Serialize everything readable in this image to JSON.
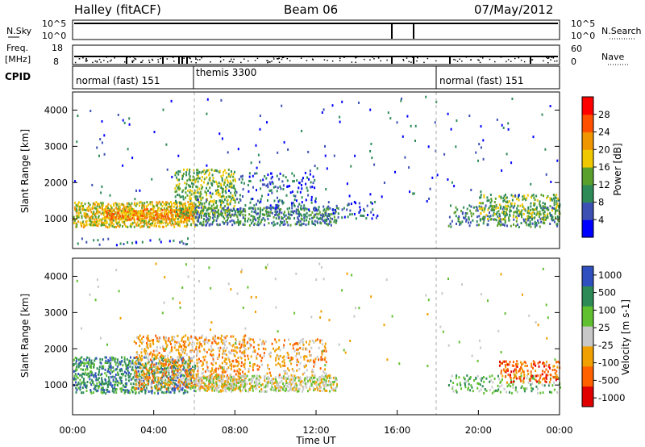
{
  "header": {
    "station": "Halley (fitACF)",
    "beam": "Beam 06",
    "date": "07/May/2012"
  },
  "strips": {
    "sky": {
      "left_label": "N.Sky",
      "right_label": "N.Search",
      "left_ticks": [
        "10^5",
        "10^0"
      ],
      "right_ticks": [
        "10^5",
        "10^0"
      ]
    },
    "freq": {
      "left_label_1": "Freq.",
      "left_label_2": "[MHz]",
      "right_label": "Nave",
      "left_ticks": [
        "18",
        "8"
      ],
      "right_ticks": [
        "60",
        "0"
      ]
    },
    "cpid": {
      "label": "CPID",
      "segments": [
        {
          "text": "normal (fast) 151",
          "start_h": 0,
          "end_h": 6
        },
        {
          "text": "themis 3300",
          "start_h": 6,
          "end_h": 18
        },
        {
          "text": "normal (fast) 151",
          "start_h": 18,
          "end_h": 24
        }
      ]
    }
  },
  "colors": {
    "power": [
      "#0000ff",
      "#3c50b4",
      "#2e8b57",
      "#5aa02c",
      "#f0c800",
      "#f09600",
      "#ff5000",
      "#ff0000"
    ],
    "velocity": [
      "#3050c0",
      "#2e8b57",
      "#60c030",
      "#c8c8c8",
      "#f0a000",
      "#ff6000",
      "#e00000"
    ]
  },
  "chart_data": [
    {
      "type": "heatmap",
      "name": "power",
      "x": {
        "label": "Time UT",
        "range_h": [
          0,
          24
        ],
        "ticks": [
          "00:00",
          "04:00",
          "08:00",
          "12:00",
          "16:00",
          "20:00",
          "00:00"
        ],
        "tick_hours": [
          0,
          4,
          8,
          12,
          16,
          20,
          24
        ]
      },
      "y": {
        "label": "Slant Range [km]",
        "range": [
          180,
          4500
        ],
        "ticks": [
          1000,
          2000,
          3000,
          4000
        ]
      },
      "colorbar": {
        "label": "Power [dB]",
        "range": [
          0,
          32
        ],
        "ticks": [
          4,
          8,
          12,
          16,
          20,
          24,
          28
        ]
      },
      "scatter_regions": [
        {
          "t0": 0.0,
          "t1": 5.8,
          "r0": 300,
          "r1": 500,
          "density": 0.18,
          "value": 8
        },
        {
          "t0": 0.0,
          "t1": 6.0,
          "r0": 800,
          "r1": 1500,
          "density": 0.8,
          "value": 18
        },
        {
          "t0": 1.5,
          "t1": 6.0,
          "r0": 1000,
          "r1": 1300,
          "density": 0.9,
          "value": 24
        },
        {
          "t0": 5.0,
          "t1": 8.0,
          "r0": 1100,
          "r1": 2400,
          "density": 0.5,
          "value": 14
        },
        {
          "t0": 6.0,
          "t1": 13.0,
          "r0": 850,
          "r1": 1350,
          "density": 0.6,
          "value": 12
        },
        {
          "t0": 8.0,
          "t1": 12.0,
          "r0": 1200,
          "r1": 2300,
          "density": 0.22,
          "value": 6
        },
        {
          "t0": 12.0,
          "t1": 15.0,
          "r0": 1000,
          "r1": 1500,
          "density": 0.2,
          "value": 6
        },
        {
          "t0": 18.5,
          "t1": 24.0,
          "r0": 800,
          "r1": 1400,
          "density": 0.35,
          "value": 10
        },
        {
          "t0": 20.0,
          "t1": 24.0,
          "r0": 1000,
          "r1": 1700,
          "density": 0.4,
          "value": 16
        },
        {
          "t0": 0.0,
          "t1": 24.0,
          "r0": 1500,
          "r1": 4400,
          "density": 0.012,
          "value": 6
        }
      ]
    },
    {
      "type": "heatmap",
      "name": "velocity",
      "x": {
        "label": "Time UT",
        "range_h": [
          0,
          24
        ],
        "ticks": [
          "00:00",
          "04:00",
          "08:00",
          "12:00",
          "16:00",
          "20:00",
          "00:00"
        ],
        "tick_hours": [
          0,
          4,
          8,
          12,
          16,
          20,
          24
        ]
      },
      "y": {
        "label": "Slant Range [km]",
        "range": [
          180,
          4500
        ],
        "ticks": [
          1000,
          2000,
          3000,
          4000
        ]
      },
      "colorbar": {
        "label": "Velocity [m s-1]",
        "ticks": [
          "1000",
          "500",
          "100",
          "25",
          "-25",
          "-100",
          "-500",
          "-1000"
        ]
      },
      "scatter_regions": [
        {
          "t0": 0.0,
          "t1": 6.0,
          "r0": 800,
          "r1": 1800,
          "density": 0.55,
          "value": 1
        },
        {
          "t0": 3.0,
          "t1": 8.5,
          "r0": 900,
          "r1": 2400,
          "density": 0.45,
          "value": 4
        },
        {
          "t0": 6.0,
          "t1": 13.0,
          "r0": 850,
          "r1": 1300,
          "density": 0.7,
          "value": 3
        },
        {
          "t0": 8.0,
          "t1": 12.5,
          "r0": 1300,
          "r1": 2300,
          "density": 0.25,
          "value": 4
        },
        {
          "t0": 18.5,
          "t1": 24.0,
          "r0": 800,
          "r1": 1300,
          "density": 0.3,
          "value": 2
        },
        {
          "t0": 21.0,
          "t1": 24.0,
          "r0": 1100,
          "r1": 1700,
          "density": 0.4,
          "value": 5
        },
        {
          "t0": 0.0,
          "t1": 24.0,
          "r0": 1500,
          "r1": 4400,
          "density": 0.01,
          "value": 3
        }
      ]
    }
  ]
}
